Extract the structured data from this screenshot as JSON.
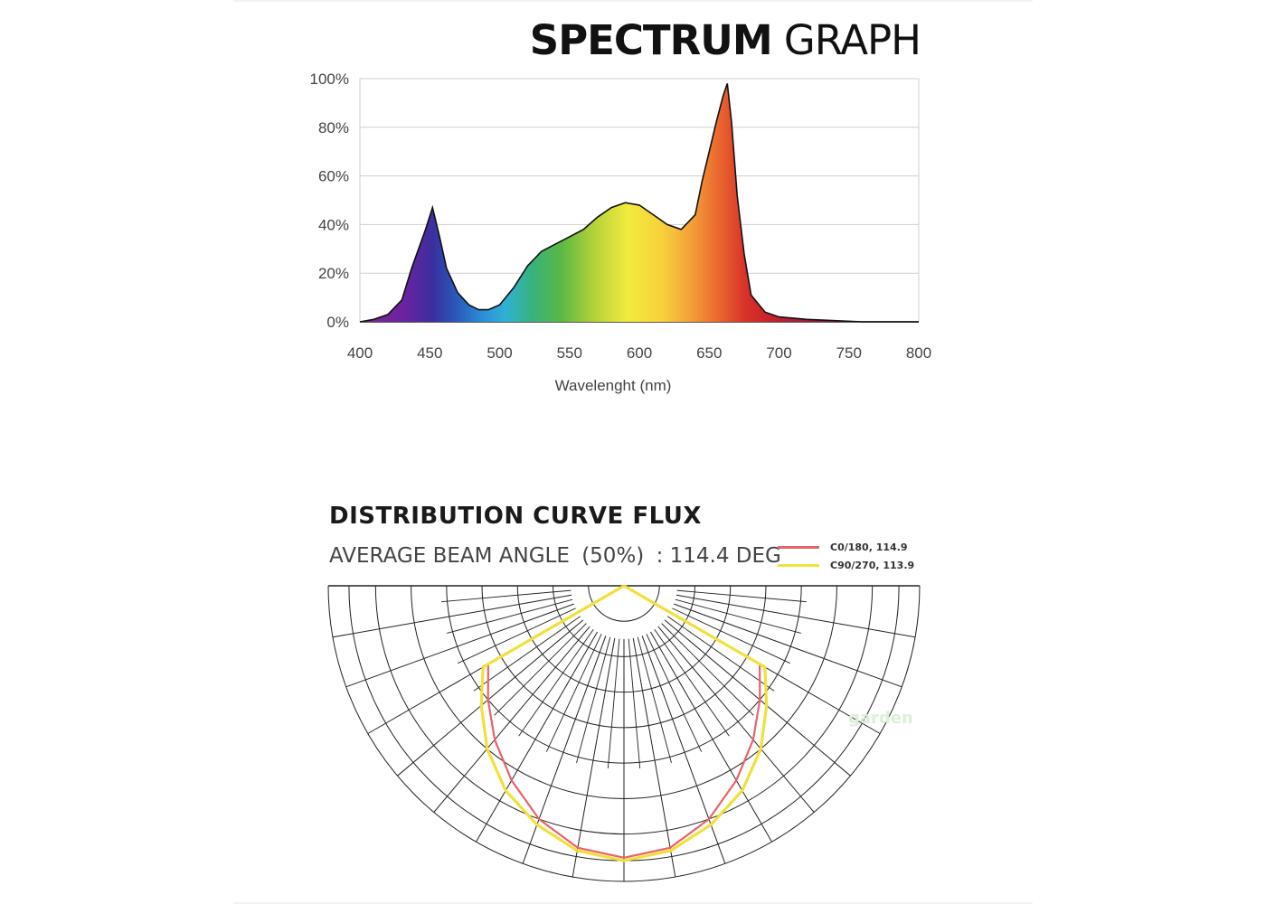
{
  "spectrum": {
    "title_bold": "SPECTRUM",
    "title_light": "GRAPH"
  },
  "distribution": {
    "title": "DISTRIBUTION CURVE FLUX",
    "beam_label": "AVERAGE BEAM ANGLE",
    "beam_percent": "(50%)",
    "beam_value": ": 114.4 DEG",
    "legend": [
      {
        "label": "C0/180, 114.9",
        "color": "#e8636a"
      },
      {
        "label": "C90/270, 113.9",
        "color": "#f2e03a"
      }
    ]
  },
  "watermark": "garden",
  "chart_data": [
    {
      "type": "area",
      "title": "SPECTRUM GRAPH",
      "xlabel": "Wavelenght (nm)",
      "ylabel": "",
      "xlim": [
        400,
        800
      ],
      "ylim": [
        0,
        100
      ],
      "x_ticks": [
        400,
        450,
        500,
        550,
        600,
        650,
        700,
        750,
        800
      ],
      "y_ticks": [
        0,
        20,
        40,
        60,
        80,
        100
      ],
      "y_tick_labels": [
        "0%",
        "20%",
        "40%",
        "60%",
        "80%",
        "100%"
      ],
      "grid": true,
      "x": [
        400,
        410,
        420,
        430,
        437,
        442,
        447,
        452,
        457,
        462,
        470,
        478,
        485,
        492,
        500,
        510,
        520,
        530,
        540,
        550,
        560,
        570,
        580,
        590,
        600,
        610,
        620,
        630,
        640,
        645,
        650,
        655,
        660,
        663,
        666,
        670,
        675,
        680,
        690,
        700,
        720,
        740,
        760,
        780,
        800
      ],
      "values": [
        0,
        1,
        3,
        9,
        22,
        30,
        38,
        47,
        35,
        22,
        12,
        7,
        5,
        5,
        7,
        14,
        23,
        29,
        32,
        35,
        38,
        43,
        47,
        49,
        48,
        44,
        40,
        38,
        44,
        58,
        70,
        82,
        93,
        98,
        82,
        52,
        28,
        11,
        4,
        2,
        1,
        0.5,
        0,
        0,
        0
      ]
    },
    {
      "type": "polar",
      "title": "DISTRIBUTION CURVE FLUX",
      "subtitle": "AVERAGE BEAM ANGLE (50%) : 114.4 DEG",
      "angle_unit": "deg",
      "angle_ticks": [
        0,
        10,
        20,
        30,
        40,
        50,
        60,
        70,
        80,
        90
      ],
      "series": [
        {
          "name": "C0/180, 114.9",
          "angles": [
            -90,
            -60,
            -50,
            -40,
            -30,
            -20,
            -10,
            0,
            10,
            20,
            30,
            40,
            50,
            60,
            90
          ],
          "values": [
            0,
            0.53,
            0.6,
            0.68,
            0.76,
            0.84,
            0.9,
            0.92,
            0.9,
            0.84,
            0.76,
            0.68,
            0.6,
            0.53,
            0
          ]
        },
        {
          "name": "C90/270, 113.9",
          "angles": [
            -90,
            -60,
            -50,
            -40,
            -30,
            -20,
            -10,
            0,
            10,
            20,
            30,
            40,
            50,
            60,
            90
          ],
          "values": [
            0,
            0.55,
            0.63,
            0.72,
            0.8,
            0.86,
            0.91,
            0.93,
            0.91,
            0.86,
            0.8,
            0.72,
            0.63,
            0.55,
            0
          ]
        }
      ]
    }
  ]
}
